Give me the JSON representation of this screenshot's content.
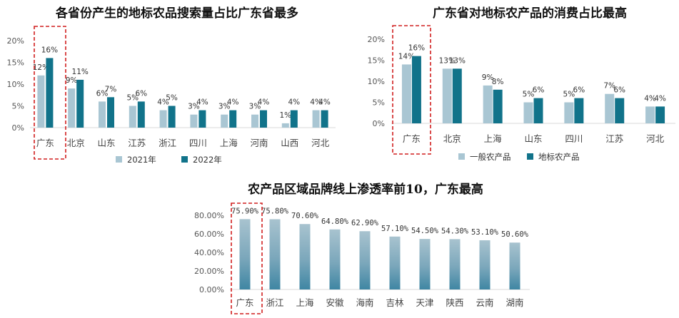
{
  "chart_data": [
    {
      "type": "bar",
      "title": "各省份产生的地标农品搜索量占比广东省最多",
      "categories": [
        "广东",
        "北京",
        "山东",
        "江苏",
        "浙江",
        "四川",
        "上海",
        "河南",
        "山西",
        "河北"
      ],
      "series": [
        {
          "name": "2021年",
          "values": [
            12,
            9,
            6,
            5,
            4,
            3,
            3,
            3,
            1,
            4
          ],
          "color": "#a9c6d3"
        },
        {
          "name": "2022年",
          "values": [
            16,
            11,
            7,
            6,
            5,
            4,
            4,
            4,
            4,
            4
          ],
          "color": "#11738a"
        }
      ],
      "y_ticks": [
        "0%",
        "5%",
        "10%",
        "15%",
        "20%"
      ],
      "ylim": [
        0,
        20
      ],
      "unit": "%",
      "highlight": "广东"
    },
    {
      "type": "bar",
      "title": "广东省对地标农产品的消费占比最高",
      "categories": [
        "广东",
        "北京",
        "上海",
        "山东",
        "四川",
        "江苏",
        "河北"
      ],
      "series": [
        {
          "name": "一般农产品",
          "values": [
            14,
            13,
            9,
            5,
            5,
            7,
            4
          ],
          "color": "#a9c6d3"
        },
        {
          "name": "地标农产品",
          "values": [
            16,
            13,
            8,
            6,
            6,
            6,
            4
          ],
          "color": "#11738a"
        }
      ],
      "y_ticks": [
        "0%",
        "5%",
        "10%",
        "15%",
        "20%"
      ],
      "ylim": [
        0,
        20
      ],
      "unit": "%",
      "highlight": "广东"
    },
    {
      "type": "bar",
      "title": "农产品区域品牌线上渗透率前10，广东最高",
      "categories": [
        "广东",
        "浙江",
        "上海",
        "安徽",
        "海南",
        "吉林",
        "天津",
        "陕西",
        "云南",
        "湖南"
      ],
      "series": [
        {
          "name": "渗透率",
          "values": [
            75.9,
            75.8,
            70.6,
            64.8,
            62.9,
            57.1,
            54.5,
            54.3,
            53.1,
            50.6
          ],
          "labels": [
            "75.90%",
            "75.80%",
            "70.60%",
            "64.80%",
            "62.90%",
            "57.10%",
            "54.50%",
            "54.30%",
            "53.10%",
            "50.60%"
          ]
        }
      ],
      "y_ticks": [
        "0.00%",
        "20.00%",
        "40.00%",
        "60.00%",
        "80.00%"
      ],
      "ylim": [
        0,
        80
      ],
      "unit": "%",
      "highlight": "广东"
    }
  ]
}
